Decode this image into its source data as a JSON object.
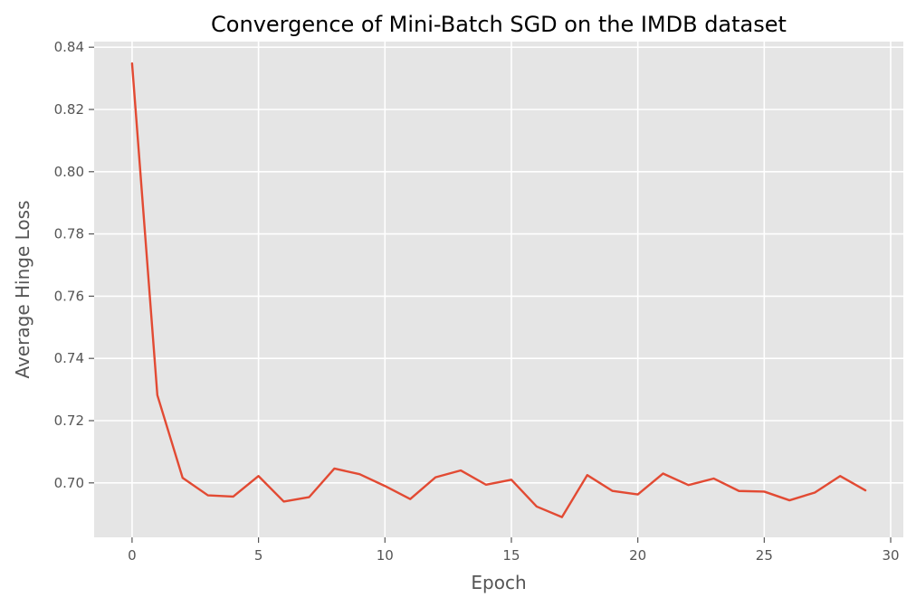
{
  "chart_data": {
    "type": "line",
    "title": "Convergence of Mini-Batch SGD on the IMDB dataset",
    "xlabel": "Epoch",
    "ylabel": "Average Hinge Loss",
    "xlim": [
      -1.5,
      30.5
    ],
    "ylim": [
      0.6825,
      0.8418
    ],
    "xticks": [
      0,
      5,
      10,
      15,
      20,
      25,
      30
    ],
    "xtick_labels": [
      "0",
      "5",
      "10",
      "15",
      "20",
      "25",
      "30"
    ],
    "yticks": [
      0.7,
      0.72,
      0.74,
      0.76,
      0.78,
      0.8,
      0.82,
      0.84
    ],
    "ytick_labels": [
      "0.70",
      "0.72",
      "0.74",
      "0.76",
      "0.78",
      "0.80",
      "0.82",
      "0.84"
    ],
    "grid": true,
    "series": [
      {
        "color": "#E24A33",
        "x": [
          0,
          1,
          2,
          3,
          4,
          5,
          6,
          7,
          8,
          9,
          10,
          11,
          12,
          13,
          14,
          15,
          16,
          17,
          18,
          19,
          20,
          21,
          22,
          23,
          24,
          25,
          26,
          27,
          28,
          29
        ],
        "y": [
          0.8348,
          0.7282,
          0.7016,
          0.696,
          0.6956,
          0.7022,
          0.694,
          0.6954,
          0.7046,
          0.7028,
          0.699,
          0.6948,
          0.7018,
          0.704,
          0.6994,
          0.701,
          0.6924,
          0.689,
          0.7025,
          0.6974,
          0.6963,
          0.703,
          0.6993,
          0.7014,
          0.6974,
          0.6972,
          0.6944,
          0.6969,
          0.7022,
          0.6976
        ]
      }
    ]
  }
}
